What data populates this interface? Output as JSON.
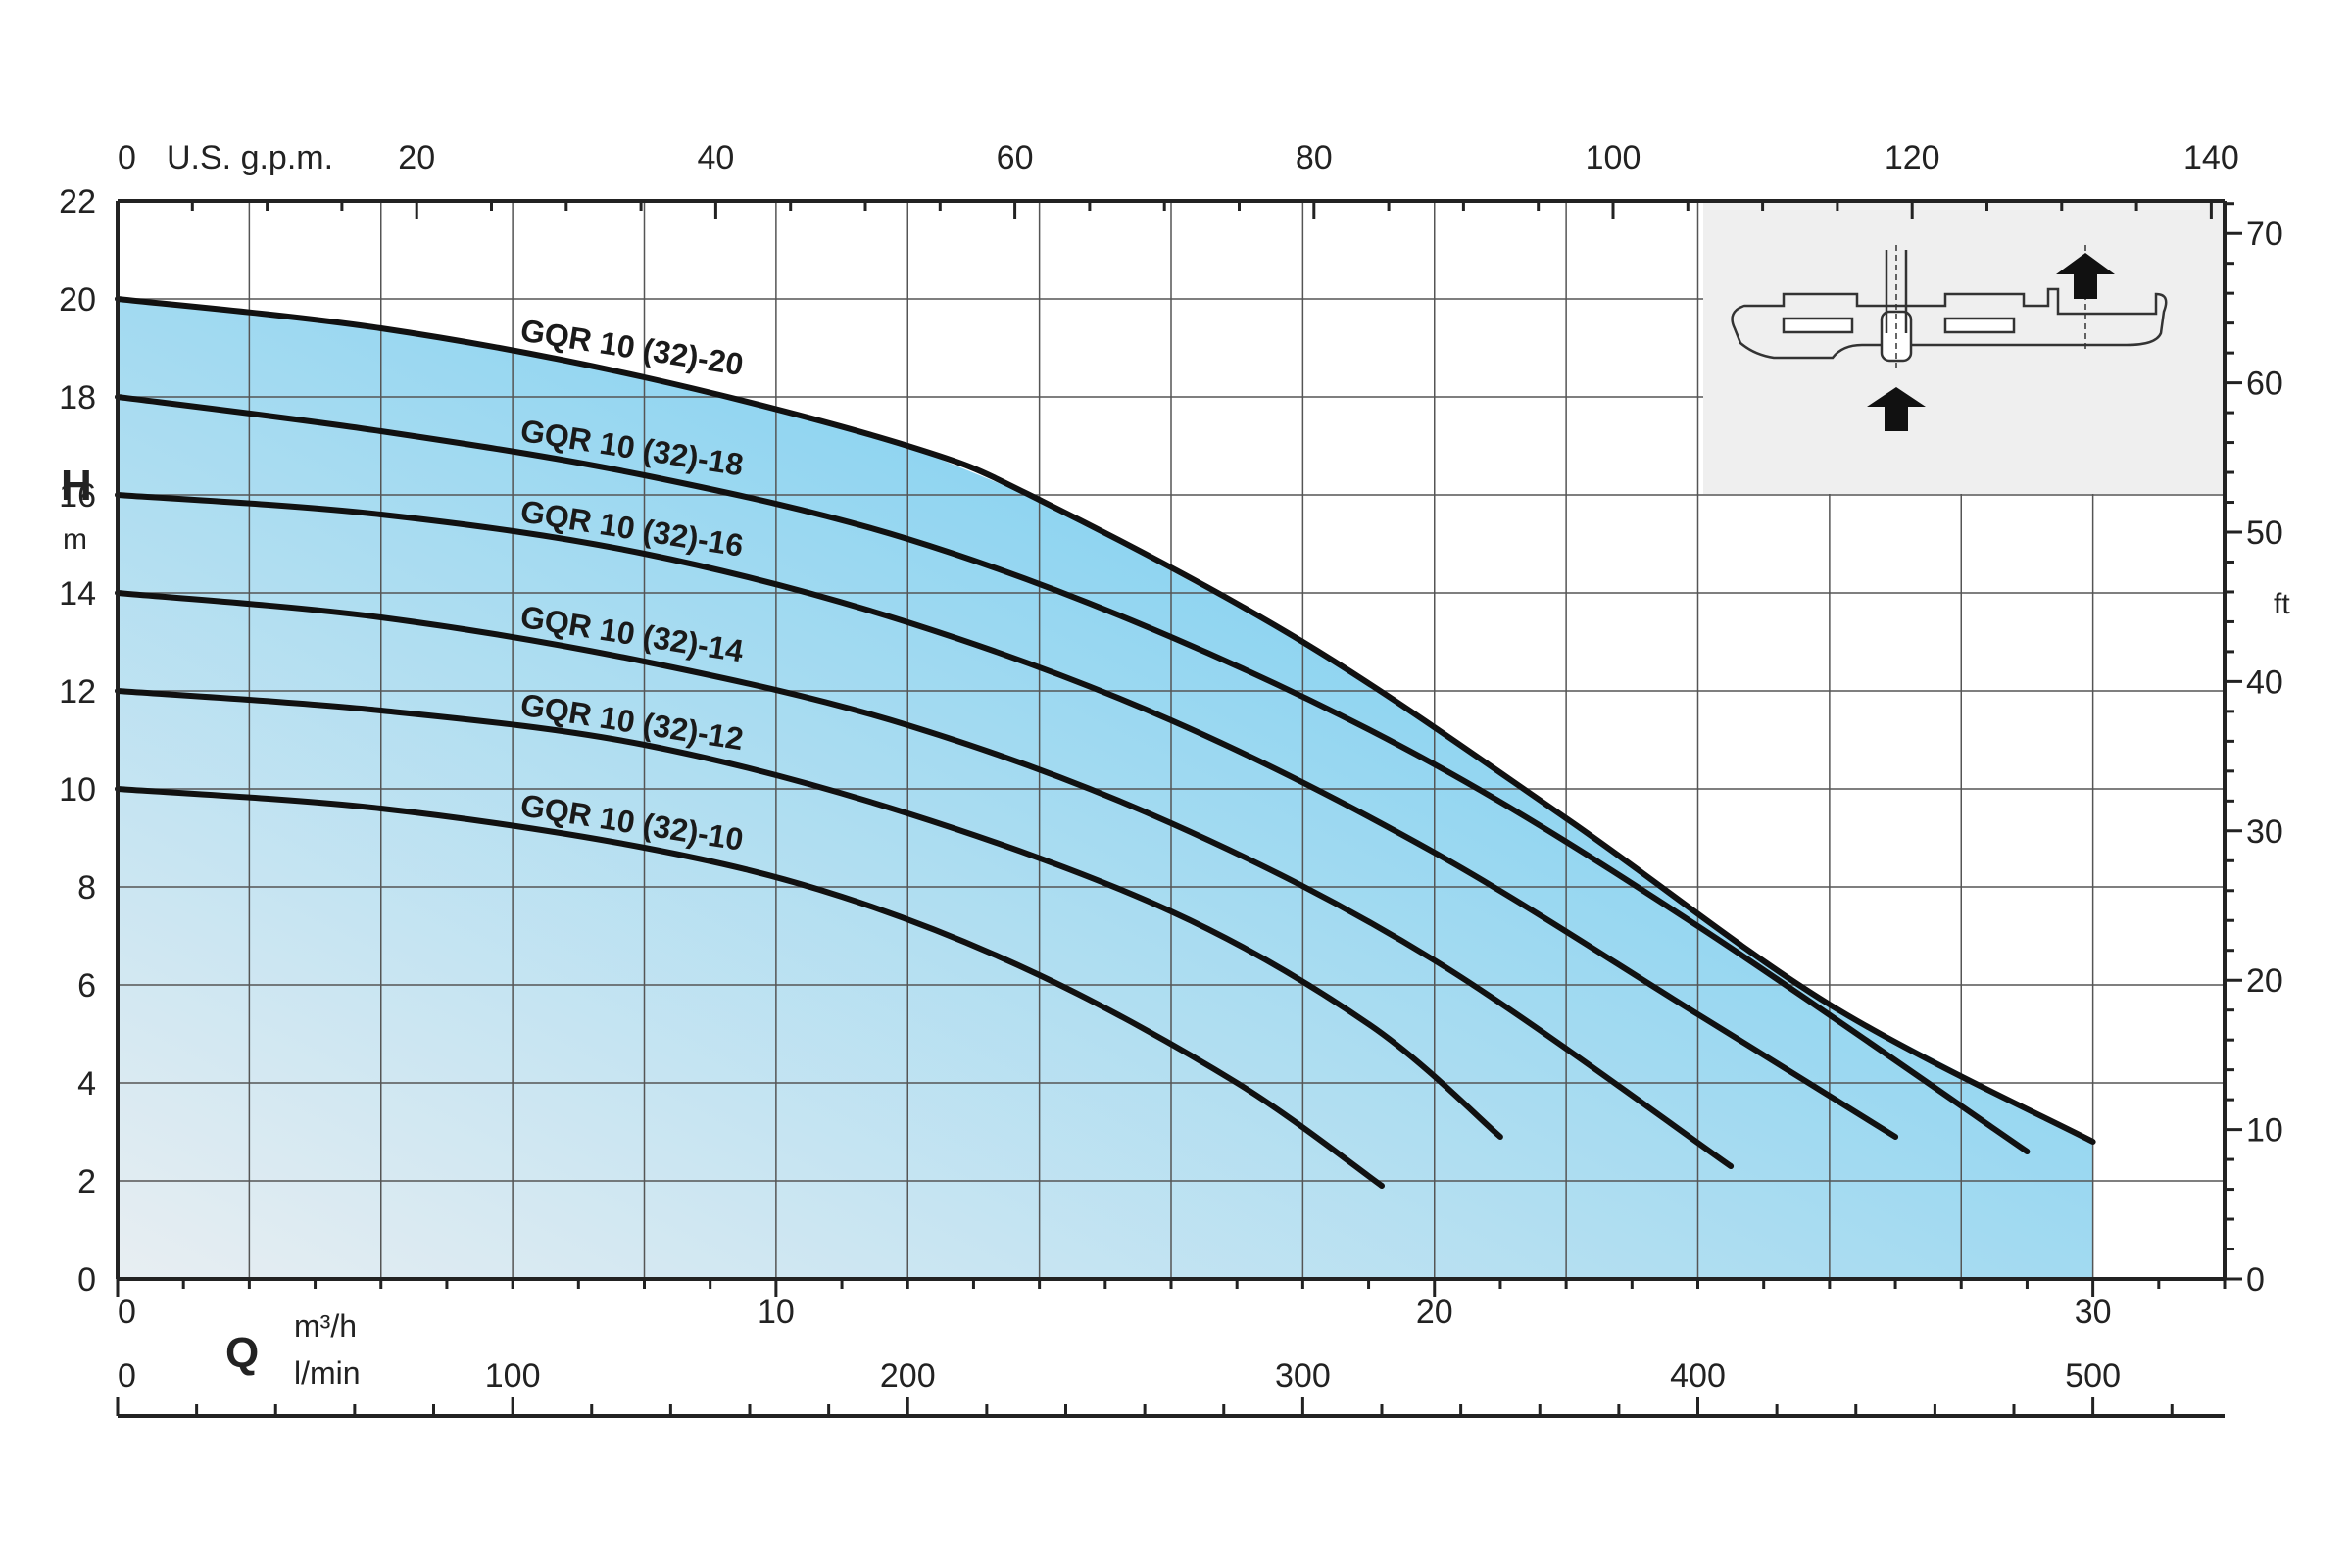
{
  "chart_data": {
    "type": "line",
    "title": "",
    "xlabel": "Q",
    "ylabel": "H",
    "y_unit": "m",
    "y2_unit": "ft",
    "x_unit_primary": "m³/h",
    "x_unit_lmin": "l/min",
    "x_unit_gpm": "U.S. g.p.m.",
    "xlim": [
      0,
      32
    ],
    "ylim": [
      0,
      22
    ],
    "grid": true,
    "colors": {
      "fill_light": "#e8eef2",
      "fill_dark": "#5cc6f0",
      "curve": "#111111",
      "grid": "#555555",
      "inset": "#efefef"
    },
    "axis_ticks": {
      "y_left": [
        "0",
        "2",
        "4",
        "6",
        "8",
        "10",
        "12",
        "14",
        "16",
        "18",
        "20",
        "22"
      ],
      "y_right_ft": [
        "0",
        "10",
        "20",
        "30",
        "40",
        "50",
        "60",
        "70"
      ],
      "x_m3h": [
        "0",
        "10",
        "20",
        "30"
      ],
      "x_lmin": [
        "0",
        "100",
        "200",
        "300",
        "400",
        "500"
      ],
      "x_gpm": [
        "0",
        "20",
        "40",
        "60",
        "80",
        "100",
        "120",
        "140"
      ]
    },
    "series": [
      {
        "name": "GQR 10 (32)-20",
        "x": [
          0,
          4,
          8,
          12,
          14,
          18,
          22,
          26,
          30
        ],
        "y": [
          20,
          19.4,
          18.4,
          17.0,
          15.9,
          13.0,
          9.4,
          5.6,
          2.8
        ]
      },
      {
        "name": "GQR 10 (32)-18",
        "x": [
          0,
          4,
          8,
          12,
          16,
          20,
          24,
          29
        ],
        "y": [
          18,
          17.3,
          16.4,
          15.1,
          13.1,
          10.5,
          7.2,
          2.6
        ]
      },
      {
        "name": "GQR 10 (32)-16",
        "x": [
          0,
          4,
          8,
          12,
          16,
          20,
          24,
          27
        ],
        "y": [
          16,
          15.6,
          14.8,
          13.4,
          11.4,
          8.7,
          5.4,
          2.9
        ]
      },
      {
        "name": "GQR 10 (32)-14",
        "x": [
          0,
          4,
          8,
          12,
          16,
          20,
          24.5
        ],
        "y": [
          14,
          13.5,
          12.6,
          11.3,
          9.3,
          6.5,
          2.3
        ]
      },
      {
        "name": "GQR 10 (32)-12",
        "x": [
          0,
          4,
          8,
          12,
          16,
          19,
          21
        ],
        "y": [
          12,
          11.6,
          10.9,
          9.5,
          7.5,
          5.2,
          2.9
        ]
      },
      {
        "name": "GQR 10 (32)-10",
        "x": [
          0,
          4,
          8,
          11,
          14,
          17,
          19.2
        ],
        "y": [
          10,
          9.6,
          8.8,
          7.8,
          6.2,
          4.0,
          1.9
        ]
      }
    ]
  }
}
